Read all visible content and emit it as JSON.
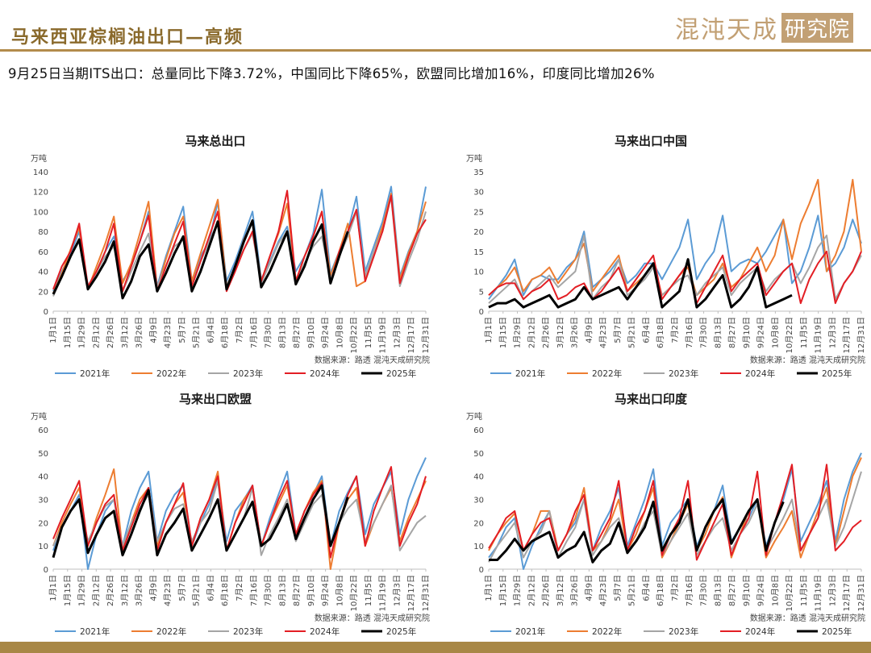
{
  "header": {
    "title": "马来西亚棕榈油出口—高频",
    "logo_text": "混沌天成",
    "logo_box": "研究院"
  },
  "summary": "9月25日当期ITS出口：总量同比下降3.72%，中国同比下降65%，欧盟同比增加16%，印度同比增加26%",
  "colors": {
    "2021年": "#5b9bd5",
    "2022年": "#ed7d31",
    "2023年": "#a5a5a5",
    "2024年": "#e31e24",
    "2025年": "#000000",
    "accent": "#b38b4b"
  },
  "x_labels": [
    "1月1日",
    "1月15日",
    "1月29日",
    "2月12日",
    "2月26日",
    "3月12日",
    "3月26日",
    "4月9日",
    "4月23日",
    "5月7日",
    "5月21日",
    "6月4日",
    "6月18日",
    "7月2日",
    "7月16日",
    "7月30日",
    "8月13日",
    "8月27日",
    "9月10日",
    "9月24日",
    "10月8日",
    "10月22日",
    "11月5日",
    "11月19日",
    "12月3日",
    "12月17日",
    "12月31日"
  ],
  "chart_data": [
    {
      "type": "line",
      "title": "马来总出口",
      "unit": "万吨",
      "ylim": [
        0,
        140
      ],
      "yticks": [
        0,
        20,
        40,
        60,
        80,
        100,
        120,
        140
      ],
      "source": "数据来源：路透   混沌天成研究院",
      "legend_position": "bottom",
      "series": [
        {
          "name": "2021年",
          "values": [
            20,
            40,
            58,
            80,
            25,
            40,
            60,
            75,
            30,
            45,
            70,
            100,
            25,
            55,
            80,
            105,
            30,
            55,
            70,
            110,
            30,
            50,
            75,
            100,
            32,
            50,
            70,
            85,
            40,
            55,
            78,
            122,
            38,
            60,
            80,
            115,
            40,
            65,
            90,
            125,
            35,
            60,
            80,
            125
          ]
        },
        {
          "name": "2022年",
          "values": [
            18,
            38,
            62,
            84,
            22,
            45,
            68,
            95,
            28,
            48,
            78,
            110,
            22,
            52,
            78,
            95,
            30,
            58,
            85,
            112,
            25,
            45,
            72,
            90,
            30,
            55,
            78,
            108,
            30,
            55,
            75,
            100,
            35,
            60,
            88,
            25,
            30,
            60,
            85,
            118,
            32,
            58,
            80,
            110
          ]
        },
        {
          "name": "2023年",
          "values": [
            15,
            35,
            55,
            70,
            22,
            40,
            55,
            65,
            20,
            40,
            60,
            78,
            25,
            45,
            65,
            72,
            25,
            50,
            70,
            90,
            25,
            45,
            62,
            78,
            28,
            48,
            68,
            80,
            28,
            48,
            65,
            75,
            32,
            55,
            75,
            100,
            35,
            60,
            80,
            115,
            25,
            50,
            72,
            100
          ]
        },
        {
          "name": "2024年",
          "values": [
            22,
            45,
            60,
            88,
            25,
            40,
            60,
            88,
            20,
            45,
            70,
            96,
            20,
            45,
            68,
            90,
            25,
            50,
            75,
            100,
            20,
            40,
            62,
            80,
            30,
            55,
            80,
            121,
            30,
            55,
            75,
            100,
            28,
            60,
            80,
            102,
            30,
            55,
            80,
            116,
            28,
            55,
            78,
            92
          ]
        },
        {
          "name": "2025年",
          "values": [
            17,
            35,
            55,
            72,
            22,
            35,
            50,
            70,
            13,
            30,
            55,
            67,
            20,
            38,
            58,
            75,
            20,
            40,
            65,
            90,
            22,
            45,
            70,
            91,
            24,
            40,
            60,
            80,
            27,
            45,
            70,
            87,
            28,
            55,
            80
          ]
        }
      ]
    },
    {
      "type": "line",
      "title": "马来出口中国",
      "unit": "万吨",
      "ylim": [
        0,
        35
      ],
      "yticks": [
        0,
        5,
        10,
        15,
        20,
        25,
        30,
        35
      ],
      "source": "数据来源：路透   混沌天成研究院",
      "legend_position": "bottom",
      "series": [
        {
          "name": "2021年",
          "values": [
            3,
            6,
            9,
            13,
            4,
            8,
            9,
            8,
            8,
            11,
            13,
            20,
            6,
            8,
            10,
            13,
            7,
            9,
            12,
            12,
            8,
            12,
            16,
            23,
            8,
            12,
            15,
            24,
            10,
            12,
            13,
            12,
            15,
            19,
            23,
            7,
            10,
            16,
            24,
            10,
            12,
            16,
            23,
            17
          ]
        },
        {
          "name": "2022年",
          "values": [
            4,
            6,
            8,
            11,
            5,
            8,
            9,
            11,
            7,
            10,
            13,
            17,
            5,
            8,
            11,
            14,
            5,
            7,
            9,
            12,
            4,
            6,
            9,
            11,
            4,
            6,
            8,
            12,
            6,
            8,
            12,
            16,
            10,
            14,
            23,
            13,
            22,
            27,
            33,
            10,
            14,
            20,
            33,
            15
          ]
        },
        {
          "name": "2023年",
          "values": [
            2,
            4,
            6,
            8,
            3,
            5,
            7,
            9,
            6,
            8,
            10,
            19,
            3,
            6,
            8,
            13,
            4,
            6,
            8,
            11,
            4,
            6,
            8,
            9,
            4,
            7,
            9,
            11,
            4,
            7,
            9,
            11,
            5,
            8,
            10,
            12,
            7,
            11,
            16,
            19,
            3,
            7,
            10,
            14
          ]
        },
        {
          "name": "2024年",
          "values": [
            4,
            6,
            7,
            7,
            3,
            5,
            6,
            8,
            3,
            4,
            6,
            7,
            3,
            5,
            8,
            11,
            5,
            8,
            11,
            14,
            3,
            6,
            9,
            12,
            2,
            6,
            10,
            14,
            5,
            8,
            10,
            12,
            4,
            7,
            10,
            12,
            2,
            8,
            12,
            15,
            2,
            7,
            10,
            15
          ]
        },
        {
          "name": "2025年",
          "values": [
            1,
            2,
            2,
            3,
            1,
            2,
            3,
            4,
            1,
            2,
            3,
            6,
            3,
            4,
            5,
            6,
            3,
            6,
            9,
            12,
            1,
            3,
            5,
            13,
            1,
            3,
            6,
            9,
            1,
            3,
            6,
            11,
            1,
            2,
            3,
            4
          ]
        }
      ]
    },
    {
      "type": "line",
      "title": "马来出口欧盟",
      "unit": "万吨",
      "ylim": [
        0,
        60
      ],
      "yticks": [
        0,
        10,
        20,
        30,
        40,
        50,
        60
      ],
      "source": "数据来源：路透   混沌天成研究院",
      "legend_position": "bottom",
      "series": [
        {
          "name": "2021年",
          "values": [
            8,
            18,
            25,
            32,
            0,
            15,
            25,
            30,
            10,
            25,
            35,
            42,
            12,
            25,
            32,
            36,
            10,
            20,
            28,
            38,
            12,
            25,
            30,
            36,
            10,
            22,
            32,
            42,
            15,
            25,
            32,
            40,
            10,
            25,
            33,
            40,
            15,
            28,
            35,
            42,
            15,
            30,
            40,
            48
          ]
        },
        {
          "name": "2022年",
          "values": [
            10,
            20,
            28,
            35,
            10,
            22,
            32,
            43,
            8,
            20,
            30,
            35,
            10,
            20,
            28,
            33,
            10,
            22,
            30,
            42,
            8,
            20,
            30,
            35,
            10,
            20,
            28,
            36,
            15,
            25,
            33,
            38,
            0,
            20,
            30,
            35,
            10,
            20,
            28,
            35,
            12,
            22,
            30,
            38
          ]
        },
        {
          "name": "2023年",
          "values": [
            10,
            18,
            25,
            30,
            12,
            20,
            27,
            30,
            10,
            20,
            26,
            32,
            12,
            20,
            26,
            28,
            12,
            20,
            25,
            38,
            8,
            15,
            22,
            35,
            6,
            15,
            22,
            30,
            12,
            20,
            28,
            32,
            10,
            20,
            26,
            30,
            12,
            20,
            28,
            36,
            8,
            14,
            20,
            23
          ]
        },
        {
          "name": "2024年",
          "values": [
            13,
            22,
            30,
            38,
            10,
            20,
            28,
            32,
            8,
            18,
            28,
            35,
            8,
            20,
            28,
            37,
            10,
            22,
            30,
            40,
            8,
            20,
            28,
            36,
            10,
            20,
            30,
            38,
            15,
            25,
            32,
            37,
            5,
            20,
            32,
            40,
            10,
            25,
            35,
            44,
            10,
            20,
            28,
            40
          ]
        },
        {
          "name": "2025年",
          "values": [
            5,
            18,
            25,
            30,
            7,
            15,
            22,
            25,
            6,
            15,
            25,
            34,
            6,
            15,
            20,
            26,
            8,
            15,
            22,
            30,
            8,
            15,
            22,
            29,
            10,
            13,
            20,
            28,
            13,
            22,
            30,
            36,
            10,
            20,
            31
          ]
        }
      ]
    },
    {
      "type": "line",
      "title": "马来出口印度",
      "unit": "万吨",
      "ylim": [
        0,
        60
      ],
      "yticks": [
        0,
        10,
        20,
        30,
        40,
        50,
        60
      ],
      "source": "数据来源：路透   混沌天成研究院",
      "legend_position": "bottom",
      "series": [
        {
          "name": "2021年",
          "values": [
            5,
            10,
            18,
            22,
            0,
            10,
            18,
            25,
            8,
            15,
            20,
            30,
            8,
            18,
            25,
            35,
            10,
            20,
            30,
            43,
            10,
            20,
            25,
            30,
            10,
            18,
            25,
            36,
            12,
            18,
            22,
            30,
            10,
            20,
            30,
            43,
            12,
            20,
            28,
            38,
            12,
            30,
            42,
            50
          ]
        },
        {
          "name": "2022年",
          "values": [
            8,
            15,
            20,
            24,
            8,
            15,
            25,
            25,
            8,
            15,
            22,
            35,
            8,
            12,
            20,
            30,
            8,
            15,
            25,
            35,
            5,
            12,
            20,
            28,
            8,
            15,
            25,
            31,
            5,
            15,
            25,
            30,
            5,
            12,
            18,
            25,
            5,
            15,
            25,
            35,
            10,
            25,
            40,
            48
          ]
        },
        {
          "name": "2023年",
          "values": [
            3,
            10,
            15,
            20,
            5,
            12,
            16,
            25,
            5,
            12,
            18,
            30,
            6,
            12,
            18,
            22,
            8,
            12,
            20,
            25,
            6,
            12,
            18,
            24,
            6,
            12,
            18,
            22,
            8,
            15,
            20,
            28,
            8,
            15,
            22,
            30,
            8,
            15,
            22,
            30,
            10,
            18,
            30,
            42
          ]
        },
        {
          "name": "2024年",
          "values": [
            9,
            15,
            22,
            25,
            8,
            15,
            20,
            22,
            8,
            15,
            25,
            32,
            8,
            15,
            22,
            38,
            8,
            18,
            25,
            38,
            6,
            15,
            22,
            38,
            4,
            12,
            20,
            28,
            6,
            15,
            22,
            42,
            6,
            20,
            32,
            45,
            8,
            15,
            22,
            45,
            8,
            12,
            18,
            21
          ]
        },
        {
          "name": "2025年",
          "values": [
            4,
            4,
            8,
            13,
            8,
            12,
            14,
            16,
            5,
            8,
            10,
            16,
            3,
            8,
            11,
            20,
            7,
            12,
            18,
            29,
            8,
            15,
            20,
            30,
            8,
            18,
            25,
            30,
            11,
            18,
            25,
            30,
            8,
            20,
            29
          ]
        }
      ]
    }
  ]
}
